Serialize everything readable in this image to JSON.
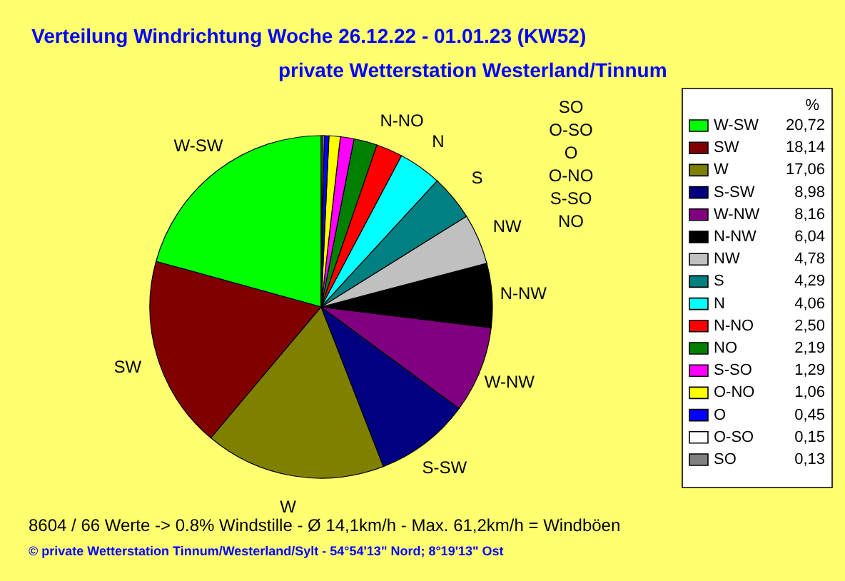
{
  "chart_data": {
    "type": "pie",
    "title": "Verteilung Windrichtung   Woche 26.12.22 - 01.01.23 (KW52)",
    "subtitle": "private Wetterstation Westerland/Tinnum",
    "legend_title": "%",
    "legend": "right",
    "categories": [
      "W-SW",
      "SW",
      "W",
      "S-SW",
      "W-NW",
      "N-NW",
      "NW",
      "S",
      "N",
      "N-NO",
      "NO",
      "S-SO",
      "O-NO",
      "O",
      "O-SO",
      "SO"
    ],
    "values": [
      20.72,
      18.14,
      17.06,
      8.98,
      8.16,
      6.04,
      4.78,
      4.29,
      4.06,
      2.5,
      2.19,
      1.29,
      1.06,
      0.45,
      0.15,
      0.13
    ],
    "value_labels": [
      "20,72",
      "18,14",
      "17,06",
      "8,98",
      "8,16",
      "6,04",
      "4,78",
      "4,29",
      "4,06",
      "2,50",
      "2,19",
      "1,29",
      "1,06",
      "0,45",
      "0,15",
      "0,13"
    ],
    "colors": [
      "#00ff00",
      "#800000",
      "#808000",
      "#000080",
      "#800080",
      "#000000",
      "#c0c0c0",
      "#008080",
      "#00ffff",
      "#ff0000",
      "#008000",
      "#ff00ff",
      "#ffff00",
      "#0000ff",
      "#ffffff",
      "#808080"
    ],
    "annotations": [
      "8604 / 66 Werte  -> 0.8% Windstille   -   Ø 14,1km/h  -  Max. 61,2km/h = Windböen",
      "© private Wetterstation Tinnum/Westerland/Sylt  -  54°54'13\" Nord; 8°19'13\" Ost"
    ]
  }
}
